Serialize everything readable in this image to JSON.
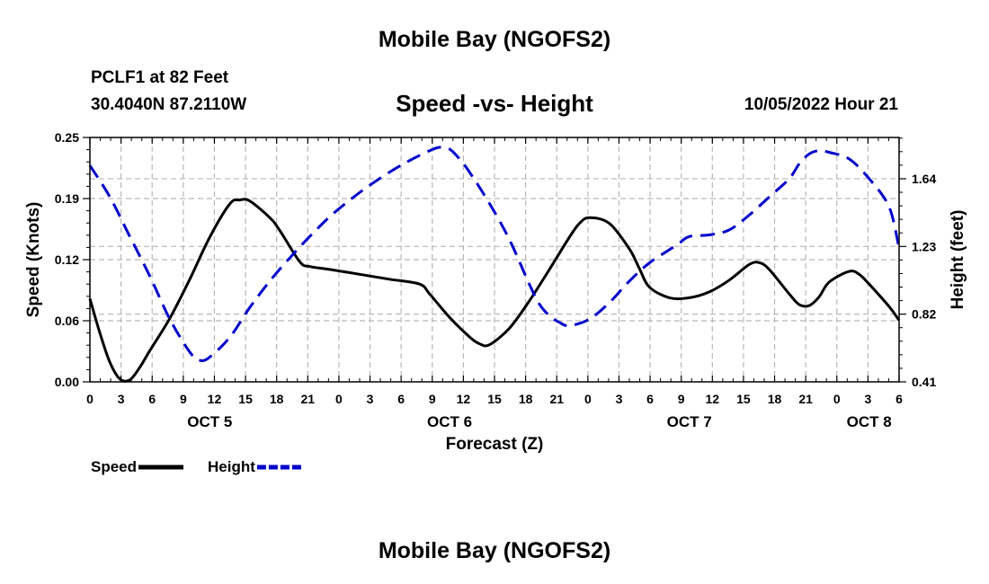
{
  "header": {
    "title": "Mobile Bay (NGOFS2)",
    "station": "PCLF1 at 82 Feet",
    "coordinates": "30.4040N  87.2110W",
    "datetime": "10/05/2022 Hour 21"
  },
  "footer": {
    "title": "Mobile Bay (NGOFS2)"
  },
  "chart_data": {
    "type": "line",
    "title": "Speed -vs- Height",
    "xlabel": "Forecast (Z)",
    "ylabel": "Speed (Knots)",
    "y2label": "Height (feet)",
    "x_range_hours": [
      0,
      81
    ],
    "x_tick_labels": [
      "0",
      "3",
      "6",
      "9",
      "12",
      "15",
      "18",
      "21",
      "0",
      "3",
      "6",
      "9",
      "12",
      "15",
      "18",
      "21",
      "0",
      "3",
      "6",
      "9",
      "12",
      "15",
      "18",
      "21",
      "0",
      "3",
      "6"
    ],
    "date_labels": [
      {
        "label": "OCT 5",
        "hour": 12
      },
      {
        "label": "OCT 6",
        "hour": 36
      },
      {
        "label": "OCT 7",
        "hour": 60
      },
      {
        "label": "OCT 8",
        "hour": 78
      }
    ],
    "ylim": [
      0,
      0.25
    ],
    "y_ticks": [
      "0.00",
      "0.06",
      "0.12",
      "0.19",
      "0.25"
    ],
    "y2lim": [
      0.41,
      1.89
    ],
    "y2_ticks": [
      "0.41",
      "0.82",
      "1.23",
      "1.64"
    ],
    "grid": true,
    "legend_position": "bottom-left",
    "series": [
      {
        "name": "Speed",
        "axis": "left",
        "color": "#000000",
        "style": "solid",
        "x": [
          0,
          1,
          2,
          3,
          4,
          5,
          6,
          8,
          10,
          12,
          14,
          15,
          16,
          18,
          19,
          21,
          22,
          24,
          27,
          30,
          33,
          34,
          36,
          38,
          39,
          40,
          42,
          44,
          46,
          48,
          49,
          50,
          52,
          54,
          55,
          56,
          58,
          60,
          62,
          64,
          66,
          67,
          68,
          70,
          71,
          72,
          73,
          74,
          76,
          77,
          78,
          80,
          81
        ],
        "y": [
          0.085,
          0.05,
          0.02,
          0.003,
          0.002,
          0.015,
          0.032,
          0.065,
          0.105,
          0.148,
          0.182,
          0.186,
          0.185,
          0.168,
          0.155,
          0.123,
          0.118,
          0.115,
          0.11,
          0.105,
          0.1,
          0.09,
          0.066,
          0.046,
          0.039,
          0.038,
          0.055,
          0.083,
          0.115,
          0.148,
          0.162,
          0.168,
          0.162,
          0.136,
          0.116,
          0.097,
          0.086,
          0.086,
          0.092,
          0.104,
          0.12,
          0.122,
          0.115,
          0.09,
          0.079,
          0.078,
          0.087,
          0.102,
          0.113,
          0.11,
          0.1,
          0.077,
          0.063
        ]
      },
      {
        "name": "Height",
        "axis": "right",
        "color": "#0000cc",
        "style": "dashed",
        "x": [
          0,
          2,
          4,
          6,
          8,
          10,
          11,
          12,
          14,
          16,
          18,
          20,
          22,
          24,
          26,
          28,
          30,
          32,
          34,
          35,
          36,
          37,
          38,
          40,
          42,
          44,
          45,
          46,
          47,
          48,
          50,
          52,
          54,
          56,
          58,
          59,
          60,
          62,
          64,
          66,
          68,
          70,
          71,
          72,
          73,
          74,
          76,
          78,
          80,
          81
        ],
        "y": [
          1.72,
          1.53,
          1.29,
          1.05,
          0.79,
          0.59,
          0.54,
          0.56,
          0.68,
          0.86,
          1.02,
          1.16,
          1.29,
          1.41,
          1.51,
          1.6,
          1.68,
          1.75,
          1.81,
          1.83,
          1.82,
          1.76,
          1.68,
          1.49,
          1.27,
          1.0,
          0.88,
          0.81,
          0.77,
          0.75,
          0.79,
          0.89,
          1.02,
          1.13,
          1.21,
          1.25,
          1.29,
          1.3,
          1.33,
          1.42,
          1.53,
          1.64,
          1.73,
          1.79,
          1.81,
          1.8,
          1.76,
          1.64,
          1.47,
          1.22
        ]
      }
    ],
    "legend": [
      {
        "label": "Speed",
        "color": "#000000",
        "style": "solid"
      },
      {
        "label": "Height",
        "color": "#0000cc",
        "style": "dashed"
      }
    ]
  }
}
